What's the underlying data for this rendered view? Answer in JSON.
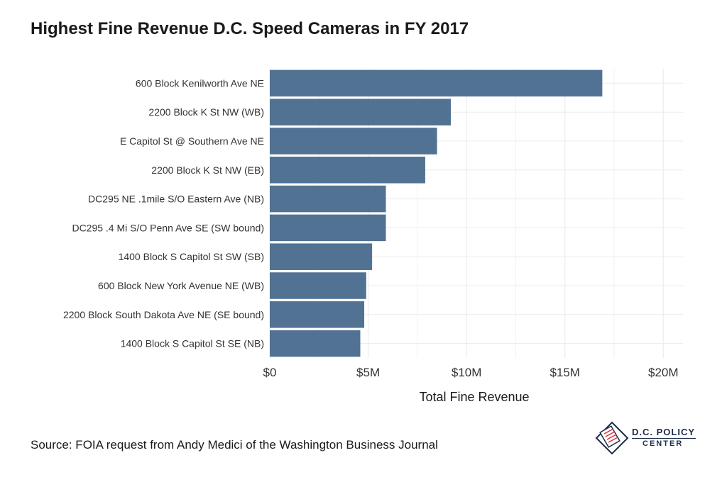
{
  "title": "Highest Fine Revenue D.C. Speed Cameras in FY 2017",
  "source": "Source: FOIA request from Andy Medici of the Washington Business Journal",
  "logo": {
    "line1": "D.C. POLICY",
    "line2": "CENTER"
  },
  "colors": {
    "bar": "#527293",
    "grid": "#ececec",
    "text": "#333333"
  },
  "chart_data": {
    "type": "bar",
    "orientation": "horizontal",
    "title": "Highest Fine Revenue D.C. Speed Cameras in FY 2017",
    "xlabel": "Total Fine Revenue",
    "ylabel": "",
    "xlim": [
      0,
      21000000
    ],
    "grid": true,
    "x_ticks": [
      0,
      5000000,
      10000000,
      15000000,
      20000000
    ],
    "x_tick_labels": [
      "$0",
      "$5M",
      "$10M",
      "$15M",
      "$20M"
    ],
    "categories": [
      "600 Block Kenilworth Ave NE",
      "2200 Block K St NW (WB)",
      "E Capitol St @ Southern Ave NE",
      "2200 Block K St NW (EB)",
      "DC295 NE .1mile S/O Eastern Ave (NB)",
      "DC295 .4 Mi S/O Penn Ave SE (SW bound)",
      "1400 Block S Capitol St SW (SB)",
      "600 Block New York Avenue NE (WB)",
      "2200 Block South Dakota Ave NE (SE bound)",
      "1400 Block S Capitol St SE (NB)"
    ],
    "values": [
      16900000,
      9200000,
      8500000,
      7900000,
      5900000,
      5900000,
      5200000,
      4900000,
      4800000,
      4600000
    ]
  }
}
